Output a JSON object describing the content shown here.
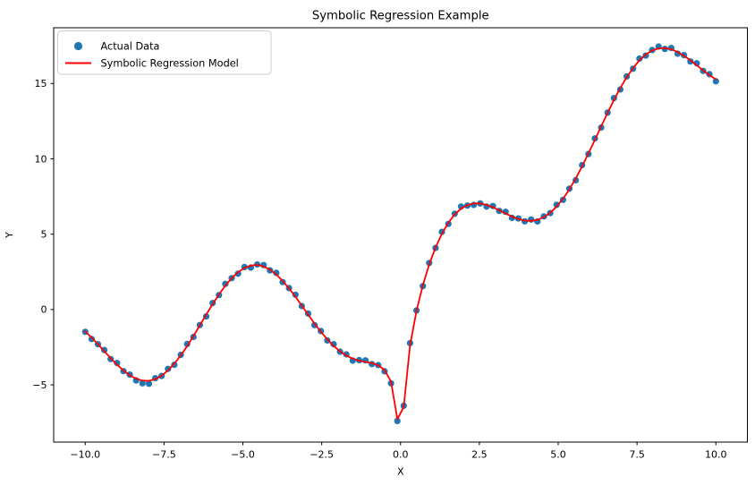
{
  "figure": {
    "title": "Symbolic Regression Example",
    "xlabel": "X",
    "ylabel": "Y",
    "background": "#ffffff"
  },
  "legend": {
    "position": "upper left",
    "items": [
      {
        "label": "Actual Data",
        "type": "marker",
        "color": "#1f77b4"
      },
      {
        "label": "Symbolic Regression Model",
        "type": "line",
        "color": "#ff0000"
      }
    ]
  },
  "axes": {
    "xticks": [
      {
        "v": -10,
        "label": "−10.0"
      },
      {
        "v": -7.5,
        "label": "−7.5"
      },
      {
        "v": -5,
        "label": "−5.0"
      },
      {
        "v": -2.5,
        "label": "−2.5"
      },
      {
        "v": 0,
        "label": "0.0"
      },
      {
        "v": 2.5,
        "label": "2.5"
      },
      {
        "v": 5,
        "label": "5.0"
      },
      {
        "v": 7.5,
        "label": "7.5"
      },
      {
        "v": 10,
        "label": "10.0"
      }
    ],
    "yticks": [
      {
        "v": -5,
        "label": "−5"
      },
      {
        "v": 0,
        "label": "0"
      },
      {
        "v": 5,
        "label": "5"
      },
      {
        "v": 10,
        "label": "10"
      },
      {
        "v": 15,
        "label": "15"
      }
    ],
    "spine_color": "#000000"
  },
  "chart_data": {
    "type": "scatter",
    "title": "Symbolic Regression Example",
    "xlabel": "X",
    "ylabel": "Y",
    "xlim": [
      -11,
      11
    ],
    "ylim": [
      -8.8,
      18.7
    ],
    "grid": false,
    "legend_position": "upper left",
    "n_points": 100,
    "x": [
      -10.0,
      -9.798,
      -9.596,
      -9.394,
      -9.192,
      -8.99,
      -8.788,
      -8.586,
      -8.384,
      -8.182,
      -7.98,
      -7.778,
      -7.576,
      -7.374,
      -7.172,
      -6.97,
      -6.768,
      -6.566,
      -6.364,
      -6.162,
      -5.96,
      -5.758,
      -5.556,
      -5.354,
      -5.152,
      -4.949,
      -4.747,
      -4.545,
      -4.343,
      -4.141,
      -3.939,
      -3.737,
      -3.535,
      -3.333,
      -3.131,
      -2.929,
      -2.727,
      -2.525,
      -2.323,
      -2.121,
      -1.919,
      -1.717,
      -1.515,
      -1.313,
      -1.111,
      -0.909,
      -0.707,
      -0.505,
      -0.303,
      -0.101,
      0.101,
      0.303,
      0.505,
      0.707,
      0.909,
      1.111,
      1.313,
      1.515,
      1.717,
      1.919,
      2.121,
      2.323,
      2.525,
      2.727,
      2.929,
      3.131,
      3.333,
      3.535,
      3.737,
      3.939,
      4.141,
      4.343,
      4.545,
      4.747,
      4.949,
      5.152,
      5.354,
      5.556,
      5.758,
      5.96,
      6.162,
      6.364,
      6.566,
      6.768,
      6.97,
      7.172,
      7.374,
      7.576,
      7.778,
      7.98,
      8.182,
      8.384,
      8.586,
      8.788,
      8.99,
      9.192,
      9.394,
      9.596,
      9.798,
      10.0
    ],
    "series": [
      {
        "name": "Actual Data",
        "type": "scatter",
        "color": "#1f77b4",
        "marker_radius": 3.6,
        "y": [
          -1.48,
          -1.96,
          -2.3,
          -2.69,
          -3.29,
          -3.55,
          -4.09,
          -4.32,
          -4.71,
          -4.9,
          -4.93,
          -4.56,
          -4.41,
          -3.94,
          -3.67,
          -3.01,
          -2.29,
          -1.82,
          -1.03,
          -0.46,
          0.43,
          0.96,
          1.7,
          2.08,
          2.38,
          2.82,
          2.78,
          2.99,
          2.95,
          2.6,
          2.43,
          1.82,
          1.42,
          0.98,
          0.23,
          -0.27,
          -1.04,
          -1.43,
          -2.05,
          -2.3,
          -2.8,
          -2.98,
          -3.39,
          -3.36,
          -3.38,
          -3.62,
          -3.69,
          -4.1,
          -4.9,
          -7.4,
          -6.39,
          -2.23,
          -0.06,
          1.55,
          3.09,
          4.08,
          5.15,
          5.68,
          6.36,
          6.83,
          6.9,
          6.94,
          7.04,
          6.83,
          6.87,
          6.54,
          6.48,
          6.08,
          6.04,
          5.85,
          5.97,
          5.84,
          6.18,
          6.4,
          6.95,
          7.28,
          8.02,
          8.58,
          9.58,
          10.32,
          11.35,
          12.08,
          13.07,
          14.03,
          14.6,
          15.47,
          15.98,
          16.65,
          16.85,
          17.22,
          17.45,
          17.29,
          17.36,
          16.98,
          16.88,
          16.46,
          16.34,
          15.84,
          15.62,
          15.15
        ]
      },
      {
        "name": "Symbolic Regression Model",
        "type": "line",
        "color": "#ff0000",
        "line_width": 1.8,
        "y": [
          -1.46,
          -1.86,
          -2.3,
          -2.77,
          -3.23,
          -3.67,
          -4.05,
          -4.37,
          -4.59,
          -4.72,
          -4.73,
          -4.62,
          -4.39,
          -4.04,
          -3.59,
          -3.05,
          -2.43,
          -1.76,
          -1.05,
          -0.34,
          0.35,
          1.0,
          1.58,
          2.08,
          2.48,
          2.76,
          2.92,
          2.96,
          2.86,
          2.65,
          2.32,
          1.9,
          1.4,
          0.85,
          0.26,
          -0.34,
          -0.93,
          -1.48,
          -1.98,
          -2.42,
          -2.78,
          -3.06,
          -3.26,
          -3.4,
          -3.48,
          -3.56,
          -3.7,
          -4.01,
          -4.78,
          -7.28,
          -6.47,
          -2.38,
          -0.09,
          1.62,
          2.99,
          4.12,
          5.03,
          5.76,
          6.31,
          6.69,
          6.93,
          7.04,
          7.04,
          6.94,
          6.79,
          6.59,
          6.37,
          6.17,
          6.01,
          5.9,
          5.88,
          5.95,
          6.13,
          6.42,
          6.83,
          7.35,
          7.98,
          8.7,
          9.5,
          10.36,
          11.25,
          12.16,
          13.05,
          13.9,
          14.7,
          15.41,
          16.03,
          16.54,
          16.92,
          17.19,
          17.33,
          17.35,
          17.27,
          17.09,
          16.84,
          16.54,
          16.21,
          15.87,
          15.55,
          15.28
        ]
      }
    ]
  }
}
